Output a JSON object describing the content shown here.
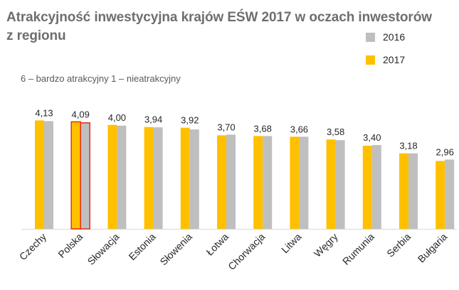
{
  "chart_data": {
    "type": "bar",
    "title": [
      "Atrakcyjność inwestycyjna krajów EŚW 2017 w oczach inwestorów",
      "z regionu"
    ],
    "subtitle": "6 – bardzo atrakcyjny 1 – nieatrakcyjny",
    "categories": [
      "Czechy",
      "Polska",
      "Słowacja",
      "Estonia",
      "Słowenia",
      "Łotwa",
      "Chorwacja",
      "Litwa",
      "Węgry",
      "Rumunia",
      "Serbia",
      "Bułgaria"
    ],
    "series": [
      {
        "name": "2017",
        "color": "#ffc000",
        "values": [
          4.13,
          4.09,
          4.0,
          3.94,
          3.92,
          3.7,
          3.68,
          3.66,
          3.58,
          3.4,
          3.18,
          2.96
        ]
      },
      {
        "name": "2016",
        "color": "#bfbfbf",
        "values": [
          4.11,
          4.06,
          3.98,
          3.93,
          3.87,
          3.72,
          3.68,
          3.66,
          3.56,
          3.42,
          3.18,
          3.0
        ]
      }
    ],
    "data_labels": [
      "4,13",
      "4,09",
      "4,00",
      "3,94",
      "3,92",
      "3,70",
      "3,68",
      "3,66",
      "3,58",
      "3,40",
      "3,18",
      "2,96"
    ],
    "highlight_category": "Polska",
    "highlight_color": "#e0301e",
    "baseline_color": "#d9d9d9",
    "ylim": [
      1,
      4.2
    ],
    "legend_position": "top-right",
    "grid": false,
    "xlabel": "",
    "ylabel": ""
  }
}
